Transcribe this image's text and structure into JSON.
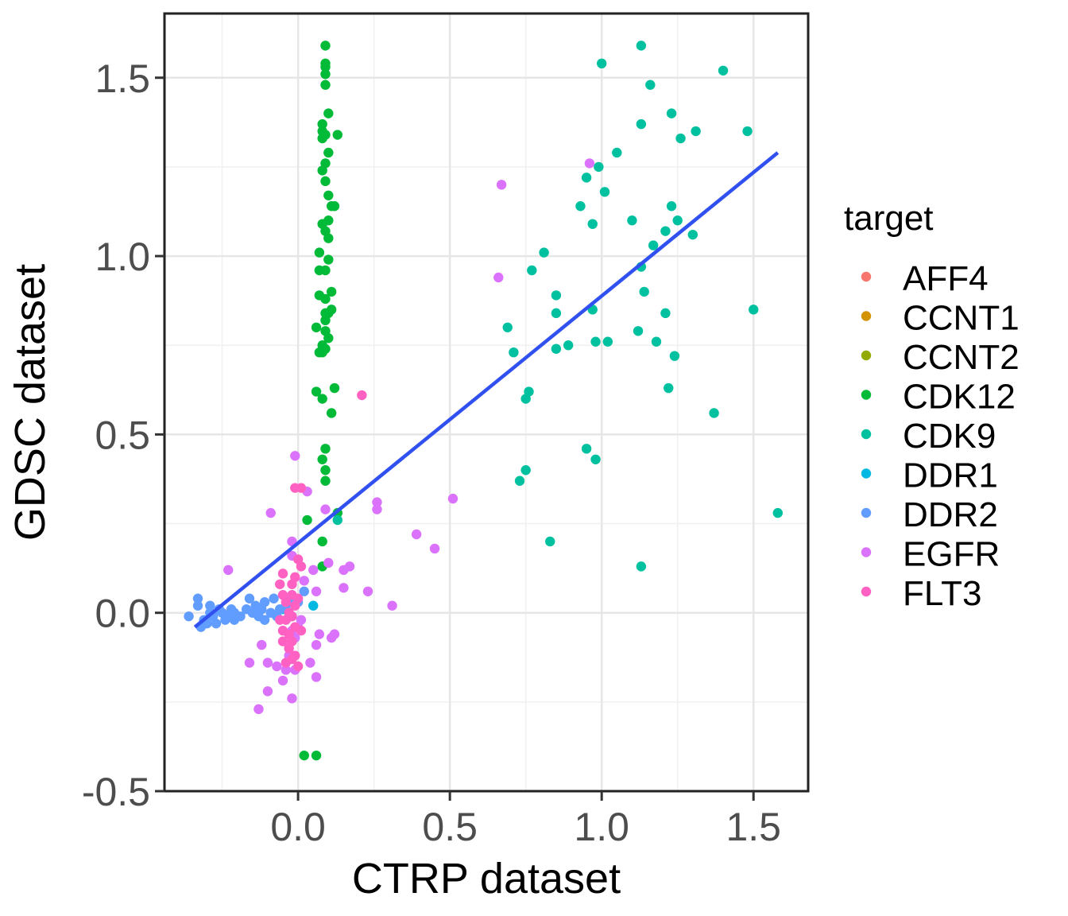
{
  "chart_data": {
    "type": "scatter",
    "title": "",
    "xlabel": "CTRP dataset",
    "ylabel": "GDSC dataset",
    "xlim": [
      -0.44,
      1.68
    ],
    "ylim": [
      -0.5,
      1.68
    ],
    "x_ticks": [
      0.0,
      0.5,
      1.0,
      1.5
    ],
    "x_tick_labels": [
      "0.0",
      "0.5",
      "1.0",
      "1.5"
    ],
    "y_ticks": [
      -0.5,
      0.0,
      0.5,
      1.0,
      1.5
    ],
    "y_tick_labels": [
      "-0.5",
      "0.0",
      "0.5",
      "1.0",
      "1.5"
    ],
    "grid": true,
    "legend": {
      "title": "target",
      "position": "right"
    },
    "fit_line": {
      "color": "#3050F0",
      "x": [
        -0.34,
        1.58
      ],
      "y": [
        -0.04,
        1.29
      ]
    },
    "series": [
      {
        "name": "AFF4",
        "color": "#F8766D",
        "points": []
      },
      {
        "name": "CCNT1",
        "color": "#D39200",
        "points": []
      },
      {
        "name": "CCNT2",
        "color": "#93AA00",
        "points": []
      },
      {
        "name": "CDK12",
        "color": "#00BA38",
        "points": [
          [
            0.09,
            1.59
          ],
          [
            0.09,
            1.54
          ],
          [
            0.09,
            1.53
          ],
          [
            0.09,
            1.51
          ],
          [
            0.09,
            1.48
          ],
          [
            0.1,
            1.4
          ],
          [
            0.08,
            1.37
          ],
          [
            0.08,
            1.35
          ],
          [
            0.09,
            1.34
          ],
          [
            0.13,
            1.34
          ],
          [
            0.08,
            1.33
          ],
          [
            0.1,
            1.29
          ],
          [
            0.09,
            1.26
          ],
          [
            0.08,
            1.24
          ],
          [
            0.09,
            1.21
          ],
          [
            0.1,
            1.17
          ],
          [
            0.12,
            1.14
          ],
          [
            0.11,
            1.14
          ],
          [
            0.1,
            1.1
          ],
          [
            0.08,
            1.09
          ],
          [
            0.09,
            1.07
          ],
          [
            0.1,
            1.05
          ],
          [
            0.07,
            1.01
          ],
          [
            0.1,
            0.99
          ],
          [
            0.07,
            0.96
          ],
          [
            0.09,
            0.96
          ],
          [
            0.11,
            0.9
          ],
          [
            0.07,
            0.89
          ],
          [
            0.09,
            0.88
          ],
          [
            0.11,
            0.85
          ],
          [
            0.1,
            0.84
          ],
          [
            0.09,
            0.84
          ],
          [
            0.09,
            0.82
          ],
          [
            0.09,
            0.79
          ],
          [
            0.06,
            0.8
          ],
          [
            0.1,
            0.77
          ],
          [
            0.08,
            0.75
          ],
          [
            0.09,
            0.74
          ],
          [
            0.07,
            0.73
          ],
          [
            0.08,
            0.73
          ],
          [
            0.12,
            0.63
          ],
          [
            0.06,
            0.62
          ],
          [
            0.08,
            0.6
          ],
          [
            0.11,
            0.56
          ],
          [
            0.09,
            0.46
          ],
          [
            0.08,
            0.43
          ],
          [
            0.09,
            0.4
          ],
          [
            0.09,
            0.37
          ],
          [
            0.13,
            0.28
          ],
          [
            0.03,
            0.26
          ],
          [
            0.08,
            0.2
          ],
          [
            0.08,
            0.13
          ],
          [
            0.02,
            -0.4
          ],
          [
            0.06,
            -0.4
          ]
        ]
      },
      {
        "name": "CDK9",
        "color": "#00C19F",
        "points": [
          [
            1.13,
            1.59
          ],
          [
            1.0,
            1.54
          ],
          [
            1.4,
            1.52
          ],
          [
            1.16,
            1.48
          ],
          [
            1.23,
            1.4
          ],
          [
            1.13,
            1.37
          ],
          [
            1.31,
            1.35
          ],
          [
            1.48,
            1.35
          ],
          [
            1.26,
            1.33
          ],
          [
            1.05,
            1.29
          ],
          [
            0.99,
            1.25
          ],
          [
            0.95,
            1.22
          ],
          [
            1.01,
            1.18
          ],
          [
            0.93,
            1.14
          ],
          [
            1.23,
            1.14
          ],
          [
            1.1,
            1.1
          ],
          [
            1.25,
            1.1
          ],
          [
            0.97,
            1.09
          ],
          [
            1.21,
            1.07
          ],
          [
            1.3,
            1.06
          ],
          [
            1.17,
            1.03
          ],
          [
            0.81,
            1.01
          ],
          [
            1.13,
            0.97
          ],
          [
            0.77,
            0.96
          ],
          [
            1.14,
            0.9
          ],
          [
            0.85,
            0.89
          ],
          [
            0.97,
            0.85
          ],
          [
            1.5,
            0.85
          ],
          [
            0.85,
            0.84
          ],
          [
            1.21,
            0.84
          ],
          [
            0.69,
            0.8
          ],
          [
            1.12,
            0.79
          ],
          [
            0.98,
            0.76
          ],
          [
            1.02,
            0.76
          ],
          [
            1.18,
            0.76
          ],
          [
            0.89,
            0.75
          ],
          [
            0.85,
            0.74
          ],
          [
            0.71,
            0.73
          ],
          [
            1.24,
            0.72
          ],
          [
            1.22,
            0.63
          ],
          [
            0.76,
            0.62
          ],
          [
            0.75,
            0.6
          ],
          [
            1.37,
            0.56
          ],
          [
            0.95,
            0.46
          ],
          [
            0.98,
            0.43
          ],
          [
            0.75,
            0.4
          ],
          [
            0.73,
            0.37
          ],
          [
            1.58,
            0.28
          ],
          [
            0.13,
            0.26
          ],
          [
            0.83,
            0.2
          ],
          [
            1.13,
            0.13
          ]
        ]
      },
      {
        "name": "DDR1",
        "color": "#00B9E3",
        "points": [
          [
            0.05,
            0.02
          ],
          [
            -0.05,
            0.01
          ]
        ]
      },
      {
        "name": "DDR2",
        "color": "#619CFF",
        "points": [
          [
            -0.36,
            -0.01
          ],
          [
            -0.33,
            0.04
          ],
          [
            -0.33,
            0.02
          ],
          [
            -0.32,
            -0.04
          ],
          [
            -0.31,
            -0.02
          ],
          [
            -0.29,
            0.02
          ],
          [
            -0.29,
            0.0
          ],
          [
            -0.28,
            -0.01
          ],
          [
            -0.27,
            -0.03
          ],
          [
            -0.26,
            0.01
          ],
          [
            -0.25,
            0.0
          ],
          [
            -0.24,
            -0.02
          ],
          [
            -0.23,
            -0.01
          ],
          [
            -0.22,
            0.01
          ],
          [
            -0.21,
            -0.02
          ],
          [
            -0.21,
            0.0
          ],
          [
            -0.19,
            -0.01
          ],
          [
            -0.17,
            0.01
          ],
          [
            -0.16,
            0.04
          ],
          [
            -0.14,
            0.02
          ],
          [
            -0.13,
            -0.01
          ],
          [
            -0.12,
            0.01
          ],
          [
            -0.11,
            -0.02
          ],
          [
            -0.11,
            0.03
          ],
          [
            -0.09,
            0.0
          ],
          [
            -0.08,
            0.04
          ],
          [
            -0.07,
            -0.01
          ],
          [
            -0.06,
            0.01
          ],
          [
            -0.04,
            0.02
          ],
          [
            -0.03,
            0.04
          ],
          [
            -0.02,
            -0.01
          ],
          [
            0.0,
            0.03
          ],
          [
            0.02,
            0.06
          ],
          [
            -0.15,
            0.0
          ],
          [
            -0.3,
            -0.03
          ]
        ]
      },
      {
        "name": "EGFR",
        "color": "#DB72FB",
        "points": [
          [
            0.96,
            1.26
          ],
          [
            0.67,
            1.2
          ],
          [
            0.66,
            0.94
          ],
          [
            -0.01,
            0.44
          ],
          [
            0.51,
            0.32
          ],
          [
            0.26,
            0.31
          ],
          [
            0.03,
            0.34
          ],
          [
            0.26,
            0.29
          ],
          [
            0.09,
            0.29
          ],
          [
            -0.09,
            0.28
          ],
          [
            0.39,
            0.22
          ],
          [
            -0.02,
            0.2
          ],
          [
            0.45,
            0.18
          ],
          [
            -0.02,
            0.16
          ],
          [
            0.1,
            0.14
          ],
          [
            0.17,
            0.13
          ],
          [
            -0.23,
            0.12
          ],
          [
            0.05,
            0.12
          ],
          [
            0.15,
            0.12
          ],
          [
            0.02,
            0.09
          ],
          [
            0.06,
            0.06
          ],
          [
            0.15,
            0.07
          ],
          [
            0.23,
            0.06
          ],
          [
            0.31,
            0.02
          ],
          [
            0.07,
            -0.06
          ],
          [
            0.12,
            -0.06
          ],
          [
            0.11,
            -0.07
          ],
          [
            -0.12,
            -0.09
          ],
          [
            0.06,
            -0.09
          ],
          [
            -0.16,
            -0.14
          ],
          [
            -0.1,
            -0.14
          ],
          [
            0.04,
            -0.14
          ],
          [
            -0.07,
            -0.15
          ],
          [
            -0.04,
            -0.16
          ],
          [
            -0.01,
            -0.16
          ],
          [
            0.06,
            -0.18
          ],
          [
            -0.05,
            -0.19
          ],
          [
            -0.1,
            -0.22
          ],
          [
            -0.02,
            -0.24
          ],
          [
            -0.13,
            -0.27
          ],
          [
            0.0,
            -0.04
          ],
          [
            -0.01,
            -0.07
          ],
          [
            -0.03,
            -0.12
          ],
          [
            0.01,
            -0.02
          ],
          [
            -0.02,
            -0.05
          ]
        ]
      },
      {
        "name": "FLT3",
        "color": "#FF61C3",
        "points": [
          [
            0.21,
            0.61
          ],
          [
            -0.01,
            0.35
          ],
          [
            0.01,
            0.35
          ],
          [
            0.0,
            0.15
          ],
          [
            0.01,
            0.13
          ],
          [
            -0.05,
            0.11
          ],
          [
            -0.01,
            0.1
          ],
          [
            -0.06,
            0.08
          ],
          [
            -0.02,
            0.08
          ],
          [
            -0.05,
            0.05
          ],
          [
            -0.02,
            0.05
          ],
          [
            0.0,
            0.04
          ],
          [
            -0.04,
            0.03
          ],
          [
            -0.01,
            0.02
          ],
          [
            -0.02,
            -0.01
          ],
          [
            -0.04,
            -0.02
          ],
          [
            -0.01,
            -0.04
          ],
          [
            -0.05,
            -0.05
          ],
          [
            -0.03,
            -0.06
          ],
          [
            -0.02,
            -0.08
          ],
          [
            -0.05,
            -0.08
          ],
          [
            -0.03,
            -0.1
          ],
          [
            -0.01,
            -0.12
          ],
          [
            -0.02,
            -0.13
          ],
          [
            -0.04,
            -0.14
          ],
          [
            0.0,
            -0.15
          ],
          [
            -0.06,
            -0.02
          ],
          [
            0.01,
            -0.05
          ],
          [
            -0.03,
            0.0
          ]
        ]
      }
    ]
  }
}
